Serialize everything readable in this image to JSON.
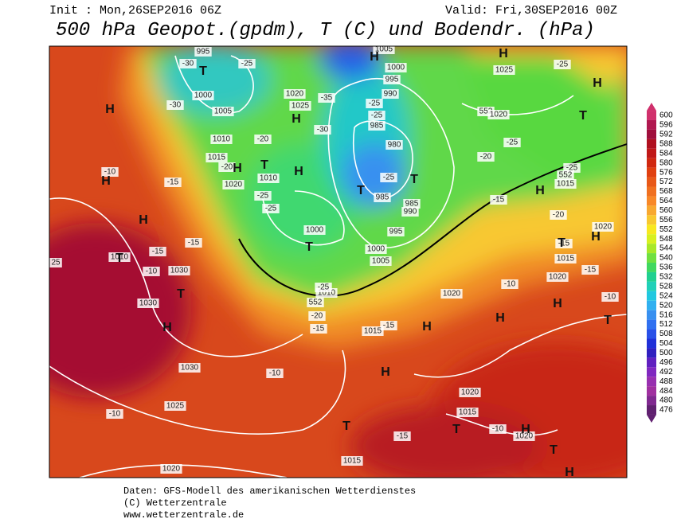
{
  "header": {
    "init": "Init : Mon,26SEP2016 06Z",
    "valid": "Valid: Fri,30SEP2016 00Z",
    "title": "500 hPa Geopot.(gpdm), T (C) und Bodendr. (hPa)"
  },
  "map": {
    "labels": [
      "995",
      "-30",
      "-25",
      "1000",
      "-30",
      "1005",
      "1010",
      "1015",
      "-20",
      "1020",
      "1020",
      "1025",
      "-35",
      "-30",
      "-20",
      "1010",
      "-25",
      "-25",
      "1000",
      "1000",
      "1005",
      "1010",
      "552",
      "-25",
      "-20",
      "-15",
      "1005",
      "1000",
      "995",
      "990",
      "-25",
      "-25",
      "985",
      "980",
      "-25",
      "985",
      "985",
      "990",
      "995",
      "1025",
      "-25",
      "552",
      "1020",
      "-25",
      "-20",
      "-25",
      "552",
      "1015",
      "-15",
      "-20",
      "1020",
      "-15",
      "1015",
      "-15",
      "1020",
      "-10",
      "1020",
      "-10",
      "-15",
      "1015",
      "-10",
      "-15",
      "-15",
      "-15",
      "-10",
      "1030",
      "1030",
      "1030",
      "-10",
      "1025",
      "-10",
      "1020",
      "25",
      "1020",
      "1015",
      "-10",
      "1020",
      "-15",
      "1015",
      "1010"
    ],
    "centers": [
      "H",
      "H",
      "H",
      "T",
      "H",
      "T",
      "H",
      "T",
      "H",
      "H",
      "H",
      "T",
      "T",
      "H",
      "H",
      "T",
      "T",
      "H",
      "T",
      "T",
      "H",
      "H",
      "H",
      "T",
      "H",
      "H",
      "T",
      "T",
      "H",
      "T",
      "H"
    ]
  },
  "legend": {
    "levels": [
      600,
      596,
      592,
      588,
      584,
      580,
      576,
      572,
      568,
      564,
      560,
      556,
      552,
      548,
      544,
      540,
      536,
      532,
      528,
      524,
      520,
      516,
      512,
      508,
      504,
      500,
      496,
      492,
      488,
      484,
      480,
      476
    ],
    "colors": [
      "#d0306c",
      "#b01850",
      "#a00f3c",
      "#b01020",
      "#c01818",
      "#d02810",
      "#e04010",
      "#e85818",
      "#f07020",
      "#f88828",
      "#f8a830",
      "#f8c830",
      "#f8e820",
      "#d8f020",
      "#a8e828",
      "#70e040",
      "#40d860",
      "#20d090",
      "#20d0b8",
      "#20c8e0",
      "#30b0f0",
      "#3890f0",
      "#3070f0",
      "#2850e8",
      "#2030d8",
      "#3020c0",
      "#6020c0",
      "#8028c0",
      "#9830b0",
      "#a030a0",
      "#802890",
      "#602070"
    ]
  },
  "footer": {
    "source": "Daten: GFS-Modell des amerikanischen Wetterdienstes",
    "copyright": "(C) Wetterzentrale",
    "url": "www.wetterzentrale.de"
  }
}
